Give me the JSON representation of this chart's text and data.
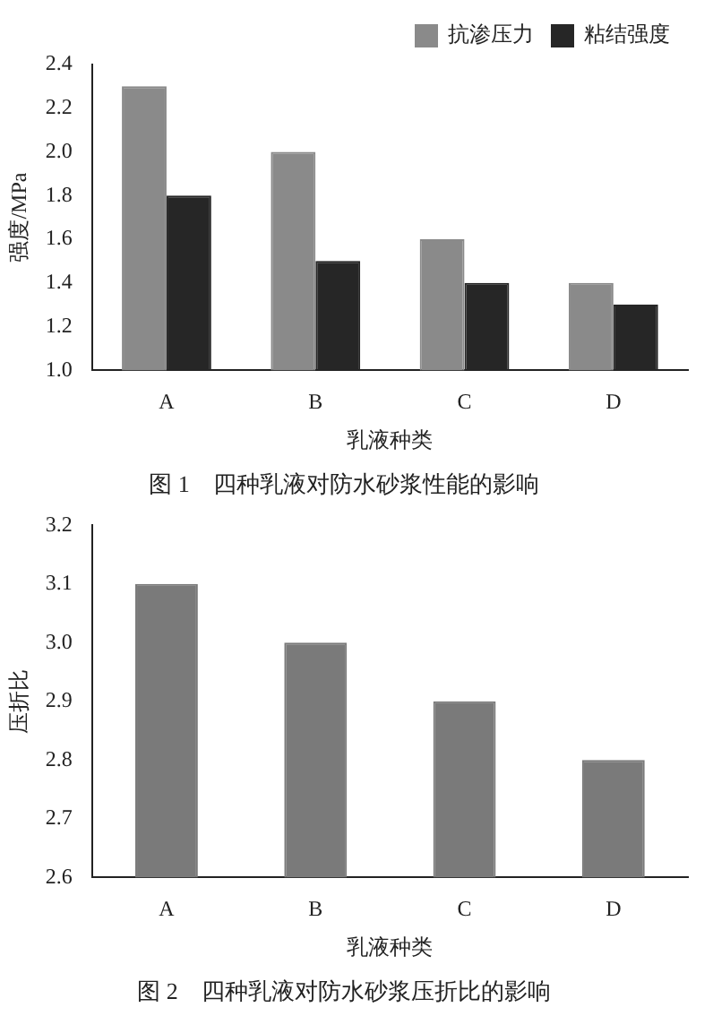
{
  "chart_data": [
    {
      "type": "bar",
      "title": "图 1　四种乳液对防水砂浆性能的影响",
      "xlabel": "乳液种类",
      "ylabel": "强度/MPa",
      "categories": [
        "A",
        "B",
        "C",
        "D"
      ],
      "series": [
        {
          "name": "抗渗压力",
          "color": "#8a8a8a",
          "values": [
            2.3,
            2.0,
            1.6,
            1.4
          ]
        },
        {
          "name": "粘结强度",
          "color": "#262626",
          "values": [
            1.8,
            1.5,
            1.4,
            1.3
          ]
        }
      ],
      "ylim": [
        1.0,
        2.4
      ],
      "yticks": [
        {
          "value": 1.0,
          "label": "1.0"
        },
        1.2,
        1.4,
        1.6,
        1.8,
        {
          "value": 2.0,
          "label": "2.0"
        },
        2.2,
        2.4
      ],
      "grid": false,
      "legend": "top right"
    },
    {
      "type": "bar",
      "title": "图 2　四种乳液对防水砂浆压折比的影响",
      "xlabel": "乳液种类",
      "ylabel": "压折比",
      "categories": [
        "A",
        "B",
        "C",
        "D"
      ],
      "values": [
        3.1,
        3.0,
        2.9,
        2.8
      ],
      "color": "#7a7a7a",
      "ylim": [
        2.6,
        3.2
      ],
      "yticks": [
        2.6,
        2.7,
        2.8,
        2.9,
        {
          "value": 3.0,
          "label": "3.0"
        },
        3.1,
        3.2
      ],
      "grid": false
    }
  ]
}
